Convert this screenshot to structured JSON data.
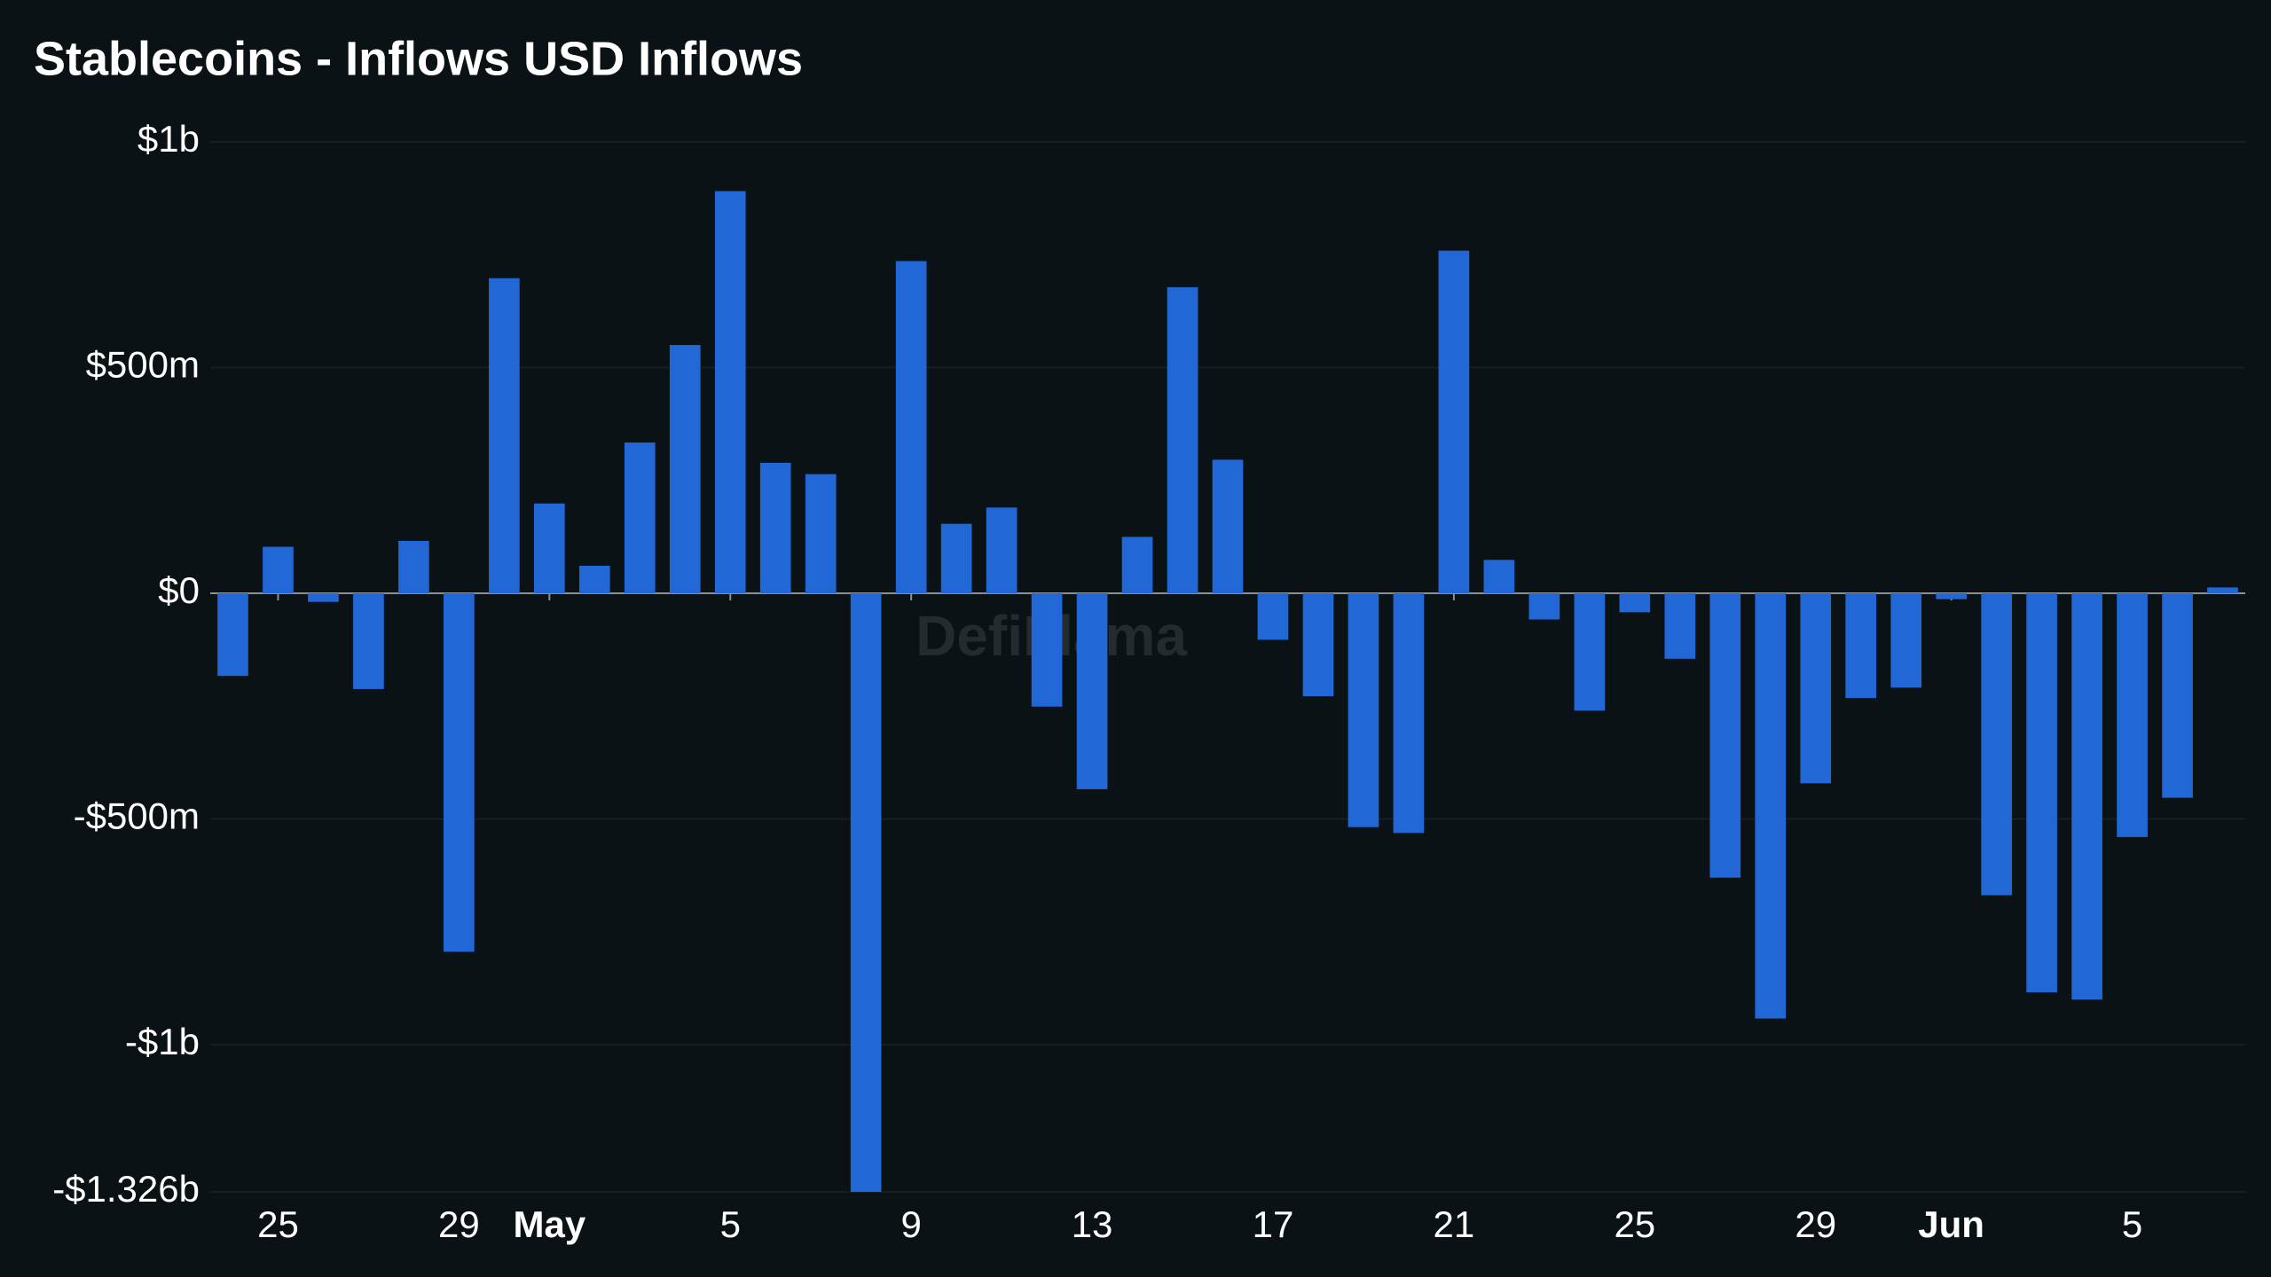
{
  "chart_data": {
    "type": "bar",
    "title": "Stablecoins - Inflows USD Inflows",
    "watermark": "DefiLlama",
    "categories": [
      null,
      "25",
      null,
      null,
      null,
      "29",
      null,
      "May",
      null,
      null,
      null,
      "5",
      null,
      null,
      null,
      "9",
      null,
      null,
      null,
      "13",
      null,
      null,
      null,
      "17",
      null,
      null,
      null,
      "21",
      null,
      null,
      null,
      "25",
      null,
      null,
      null,
      "29",
      null,
      null,
      "Jun",
      null,
      null,
      null,
      "5",
      null,
      null
    ],
    "values": [
      -183000000,
      103000000,
      -19000000,
      -212000000,
      116000000,
      -794000000,
      698000000,
      199000000,
      61000000,
      334000000,
      550000000,
      891000000,
      289000000,
      264000000,
      -1326000000,
      736000000,
      154000000,
      190000000,
      -251000000,
      -434000000,
      125000000,
      678000000,
      296000000,
      -103000000,
      -228000000,
      -518000000,
      -531000000,
      759000000,
      74000000,
      -58000000,
      -260000000,
      -42000000,
      -145000000,
      -630000000,
      -942000000,
      -421000000,
      -232000000,
      -209000000,
      -13000000,
      -669000000,
      -884000000,
      -900000000,
      -540000000,
      -453000000,
      13000000
    ],
    "color": "#2167d5",
    "ylim": [
      -1326000000,
      1000000000
    ],
    "yticks": [
      {
        "value": -1326000000,
        "label": "-$1.326b"
      },
      {
        "value": -1000000000,
        "label": "-$1b"
      },
      {
        "value": -500000000,
        "label": "-$500m"
      },
      {
        "value": 0,
        "label": "$0"
      },
      {
        "value": 500000000,
        "label": "$500m"
      },
      {
        "value": 1000000000,
        "label": "$1b"
      }
    ],
    "grid": true
  }
}
